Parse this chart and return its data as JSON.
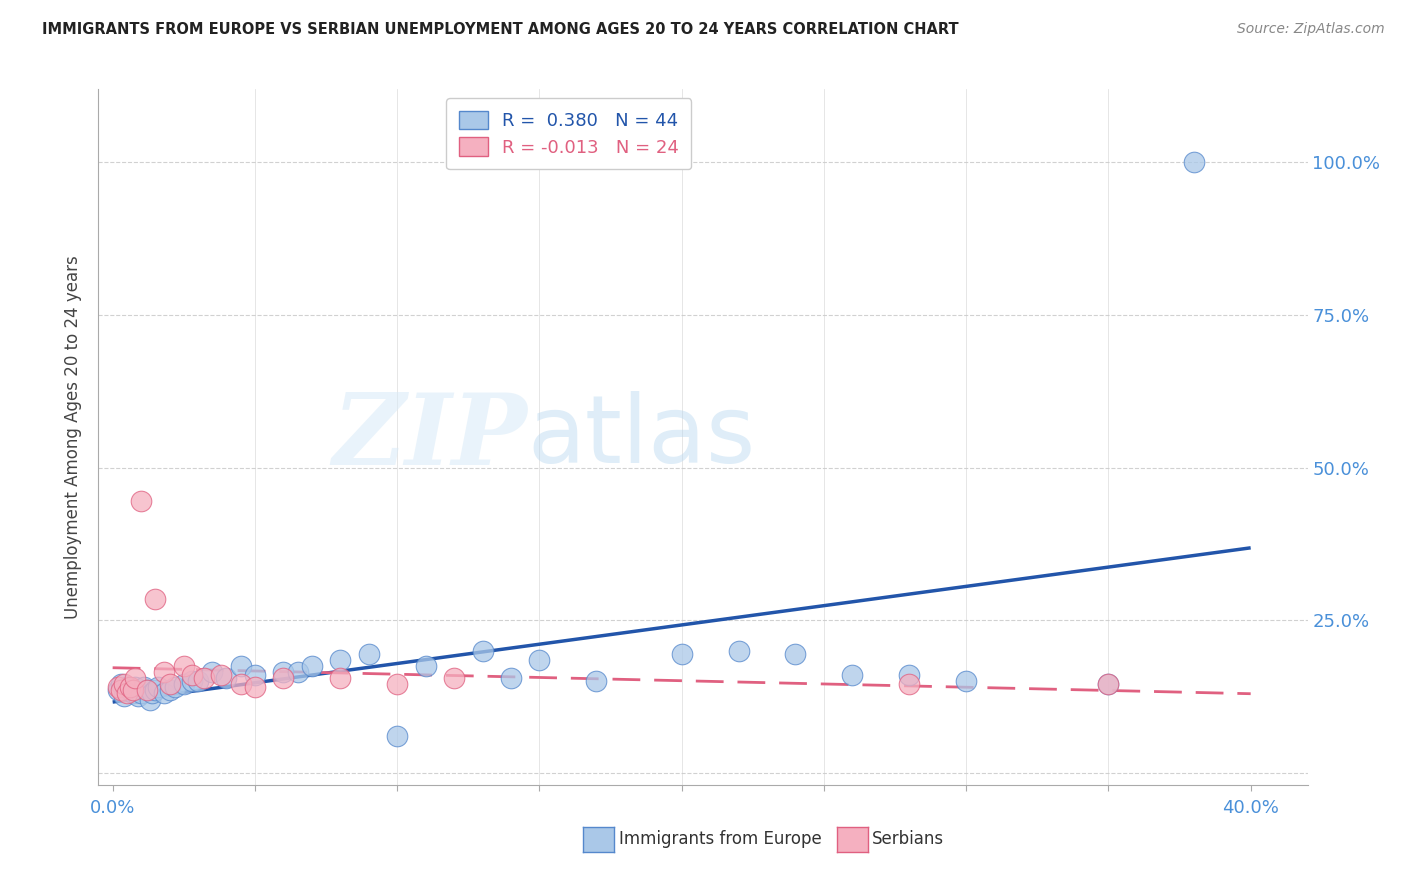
{
  "title": "IMMIGRANTS FROM EUROPE VS SERBIAN UNEMPLOYMENT AMONG AGES 20 TO 24 YEARS CORRELATION CHART",
  "source": "Source: ZipAtlas.com",
  "ylabel": "Unemployment Among Ages 20 to 24 years",
  "xlim": [
    -0.005,
    0.42
  ],
  "ylim": [
    -0.02,
    1.12
  ],
  "xtick_positions": [
    0.0,
    0.05,
    0.1,
    0.15,
    0.2,
    0.25,
    0.3,
    0.35,
    0.4
  ],
  "ytick_positions": [
    0.0,
    0.25,
    0.5,
    0.75,
    1.0
  ],
  "ytick_labels": [
    "",
    "25.0%",
    "50.0%",
    "75.0%",
    "100.0%"
  ],
  "blue_R": 0.38,
  "blue_N": 44,
  "pink_R": -0.013,
  "pink_N": 24,
  "blue_fill_color": "#aac8e8",
  "blue_edge_color": "#5588cc",
  "pink_fill_color": "#f5b0c0",
  "pink_edge_color": "#e06080",
  "blue_line_color": "#2255aa",
  "pink_line_color": "#e06080",
  "background_color": "#ffffff",
  "grid_color": "#cccccc",
  "title_color": "#222222",
  "axis_label_color": "#444444",
  "tick_label_color": "#4a90d9",
  "blue_x": [
    0.002,
    0.003,
    0.004,
    0.005,
    0.006,
    0.007,
    0.008,
    0.009,
    0.01,
    0.011,
    0.012,
    0.013,
    0.014,
    0.015,
    0.016,
    0.018,
    0.02,
    0.022,
    0.025,
    0.028,
    0.03,
    0.035,
    0.04,
    0.045,
    0.05,
    0.06,
    0.065,
    0.07,
    0.08,
    0.09,
    0.1,
    0.11,
    0.13,
    0.14,
    0.15,
    0.17,
    0.2,
    0.22,
    0.24,
    0.26,
    0.28,
    0.3,
    0.35,
    0.38
  ],
  "blue_y": [
    0.135,
    0.145,
    0.125,
    0.14,
    0.135,
    0.13,
    0.14,
    0.125,
    0.13,
    0.14,
    0.135,
    0.12,
    0.13,
    0.135,
    0.14,
    0.13,
    0.135,
    0.14,
    0.145,
    0.15,
    0.15,
    0.165,
    0.155,
    0.175,
    0.16,
    0.165,
    0.165,
    0.175,
    0.185,
    0.195,
    0.06,
    0.175,
    0.2,
    0.155,
    0.185,
    0.15,
    0.195,
    0.2,
    0.195,
    0.16,
    0.16,
    0.15,
    0.145,
    1.0
  ],
  "pink_x": [
    0.002,
    0.003,
    0.004,
    0.005,
    0.006,
    0.007,
    0.008,
    0.01,
    0.012,
    0.015,
    0.018,
    0.02,
    0.025,
    0.028,
    0.032,
    0.038,
    0.045,
    0.05,
    0.06,
    0.08,
    0.1,
    0.12,
    0.28,
    0.35
  ],
  "pink_y": [
    0.14,
    0.135,
    0.145,
    0.13,
    0.14,
    0.135,
    0.155,
    0.445,
    0.135,
    0.285,
    0.165,
    0.145,
    0.175,
    0.16,
    0.155,
    0.16,
    0.145,
    0.14,
    0.155,
    0.155,
    0.145,
    0.155,
    0.145,
    0.145
  ]
}
